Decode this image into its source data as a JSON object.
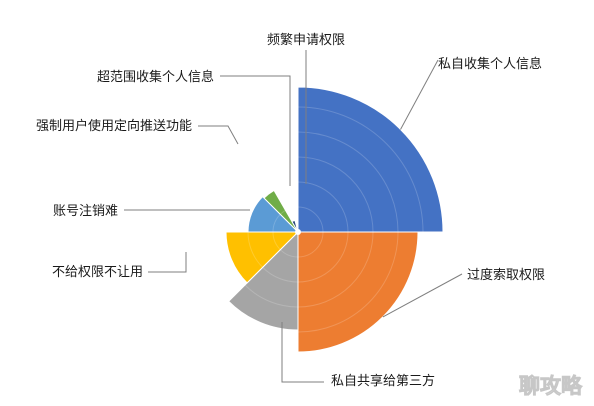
{
  "chart_data": {
    "type": "polar_area",
    "title": "",
    "categories": [
      "私自收集个人信息",
      "过度索取权限",
      "私自共享给第三方",
      "不给权限不让用",
      "账号注销难",
      "强制用户使用定向推送功能",
      "超范围收集个人信息",
      "频繁申请权限"
    ],
    "values": [
      145,
      120,
      98,
      72,
      50,
      48,
      12,
      5
    ],
    "colors": [
      "#4472C4",
      "#ED7D31",
      "#A5A5A5",
      "#FFC000",
      "#5B9BD5",
      "#70AD47",
      "#264478",
      "#9E480E"
    ],
    "grid": true,
    "legend": "none"
  },
  "watermark": "聊攻略"
}
